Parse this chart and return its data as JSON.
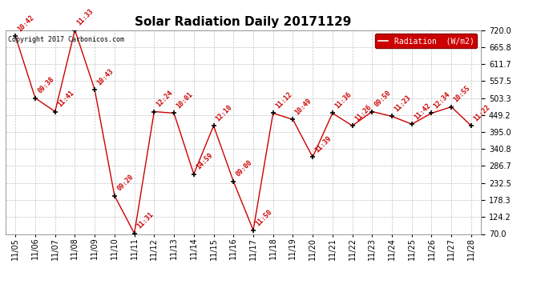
{
  "title": "Solar Radiation Daily 20171129",
  "background_color": "#ffffff",
  "plot_bg_color": "#ffffff",
  "grid_color": "#bbbbbb",
  "line_color": "#cc0000",
  "marker_color": "#000000",
  "legend_bg": "#cc0000",
  "legend_text": "Radiation  (W/m2)",
  "copyright_text": "Copyright 2017 Carbonicos.com",
  "ylim": [
    70.0,
    720.0
  ],
  "yticks": [
    70.0,
    124.2,
    178.3,
    232.5,
    286.7,
    340.8,
    395.0,
    449.2,
    503.3,
    557.5,
    611.7,
    665.8,
    720.0
  ],
  "dates": [
    "11/05",
    "11/06",
    "11/07",
    "11/08",
    "11/09",
    "11/10",
    "11/11",
    "11/12",
    "11/13",
    "11/14",
    "11/15",
    "11/16",
    "11/17",
    "11/18",
    "11/19",
    "11/20",
    "11/21",
    "11/22",
    "11/23",
    "11/24",
    "11/25",
    "11/26",
    "11/27",
    "11/28"
  ],
  "values": [
    700,
    503,
    460,
    720,
    530,
    192,
    72,
    460,
    455,
    261,
    415,
    238,
    82,
    455,
    435,
    315,
    455,
    415,
    460,
    445,
    420,
    455,
    475,
    415
  ],
  "labels": [
    "10:42",
    "09:38",
    "11:41",
    "11:33",
    "10:43",
    "09:20",
    "11:31",
    "12:24",
    "10:01",
    "14:59",
    "12:10",
    "09:00",
    "11:50",
    "11:12",
    "10:49",
    "11:39",
    "11:36",
    "11:26",
    "09:50",
    "11:23",
    "11:42",
    "12:34",
    "10:55",
    "11:22"
  ],
  "title_fontsize": 11,
  "tick_fontsize": 7,
  "annotation_fontsize": 6,
  "copyright_fontsize": 6,
  "legend_fontsize": 7
}
